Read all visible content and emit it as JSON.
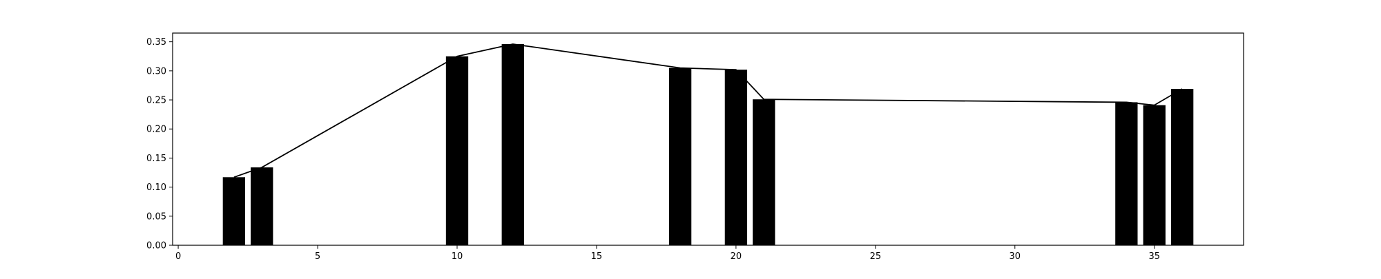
{
  "chart_data": {
    "type": "bar",
    "title": "",
    "xlabel": "",
    "ylabel": "",
    "xlim": [
      -0.2,
      38.2
    ],
    "ylim": [
      0,
      0.365
    ],
    "grid": false,
    "legend": "none",
    "bar_color": "#000000",
    "line_color": "#000000",
    "bar_width": 0.8,
    "x_ticks": [
      0,
      5,
      10,
      15,
      20,
      25,
      30,
      35
    ],
    "x_tick_labels": [
      "0",
      "5",
      "10",
      "15",
      "20",
      "25",
      "30",
      "35"
    ],
    "y_ticks": [
      0,
      0.05,
      0.1,
      0.15,
      0.2,
      0.25,
      0.3,
      0.35
    ],
    "y_tick_labels": [
      "0.00",
      "0.05",
      "0.10",
      "0.15",
      "0.20",
      "0.25",
      "0.30",
      "0.35"
    ],
    "x": [
      2,
      3,
      10,
      12,
      18,
      20,
      21,
      34,
      35,
      36
    ],
    "values": [
      0.117,
      0.134,
      0.325,
      0.346,
      0.305,
      0.302,
      0.251,
      0.246,
      0.241,
      0.269
    ]
  }
}
